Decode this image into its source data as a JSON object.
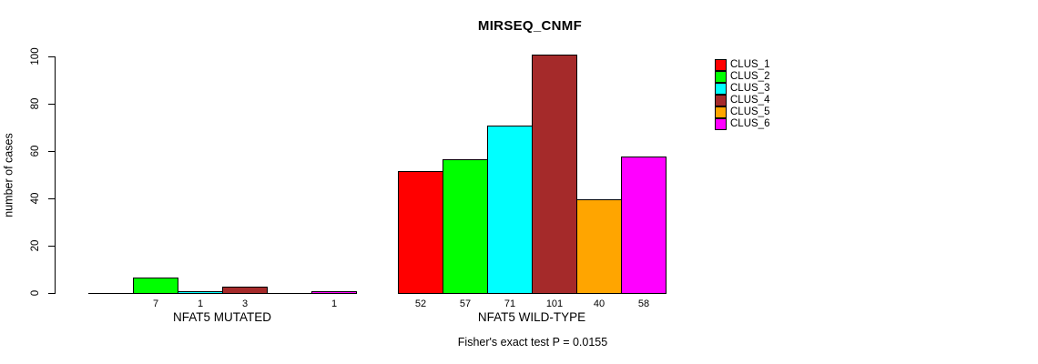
{
  "chart_data": {
    "type": "bar",
    "title": "MIRSEQ_CNMF",
    "ylabel": "number of cases",
    "ylim": [
      0,
      100
    ],
    "yticks": [
      0,
      20,
      40,
      60,
      80,
      100
    ],
    "grid": false,
    "background_color": "#ffffff",
    "bar_border_color": "#000000",
    "legend": {
      "position": "right",
      "entries": [
        {
          "label": "CLUS_1",
          "color": "#ff0000"
        },
        {
          "label": "CLUS_2",
          "color": "#00ff00"
        },
        {
          "label": "CLUS_3",
          "color": "#00ffff"
        },
        {
          "label": "CLUS_4",
          "color": "#a52a2a"
        },
        {
          "label": "CLUS_5",
          "color": "#ffa500"
        },
        {
          "label": "CLUS_6",
          "color": "#ff00ff"
        }
      ]
    },
    "categories": [
      "CLUS_1",
      "CLUS_2",
      "CLUS_3",
      "CLUS_4",
      "CLUS_5",
      "CLUS_6"
    ],
    "groups": [
      {
        "label": "NFAT5 MUTATED",
        "values": [
          0,
          7,
          1,
          3,
          0,
          1
        ]
      },
      {
        "label": "NFAT5 WILD-TYPE",
        "values": [
          52,
          57,
          71,
          101,
          40,
          58
        ]
      }
    ],
    "annotation": "Fisher's exact test P = 0.0155"
  }
}
